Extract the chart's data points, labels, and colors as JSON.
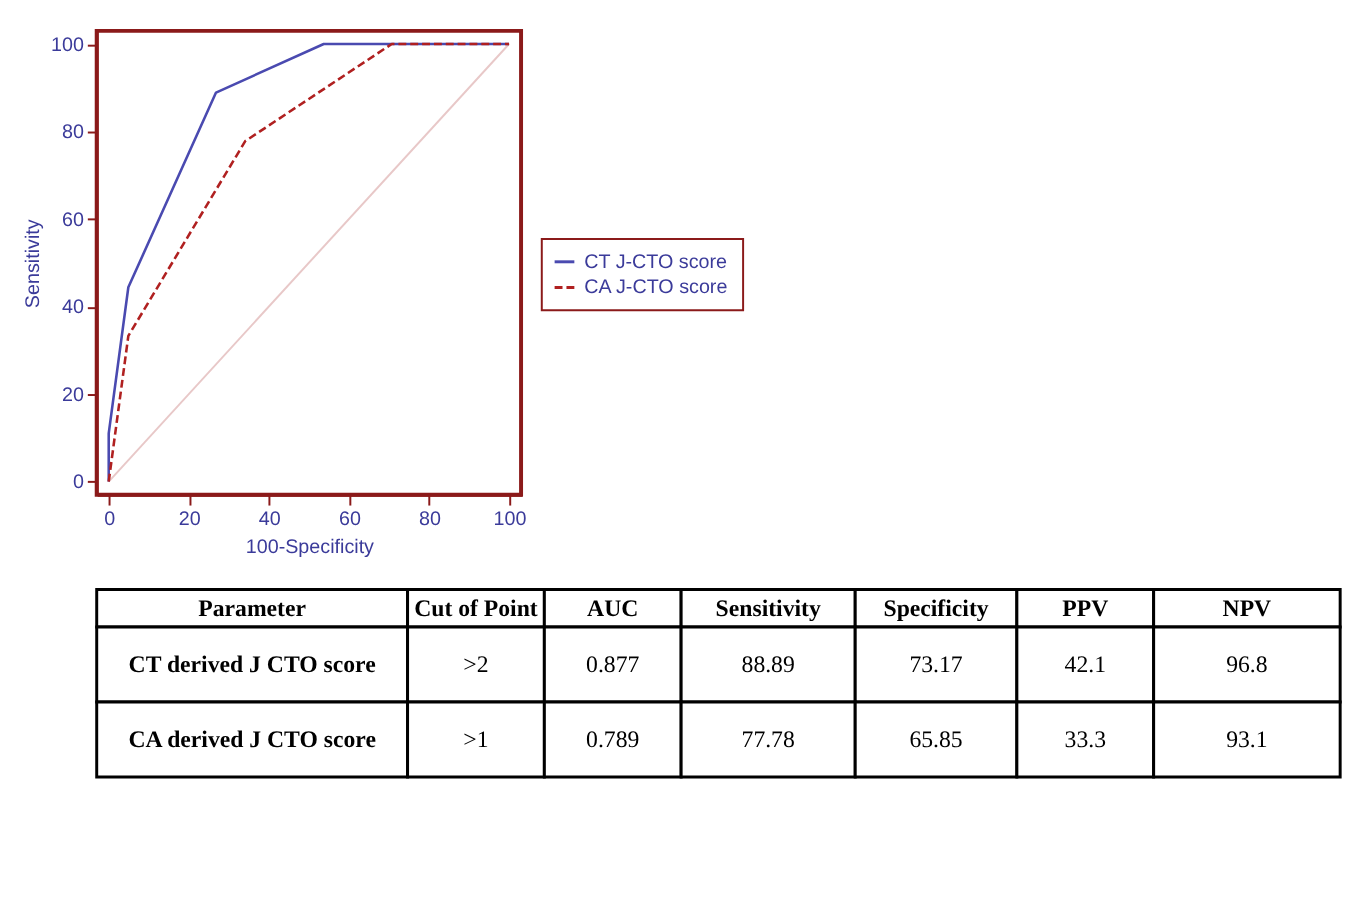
{
  "chart_data": {
    "type": "line",
    "xlabel": "100-Specificity",
    "ylabel": "Sensitivity",
    "xlim": [
      -3,
      103
    ],
    "ylim": [
      -3,
      103
    ],
    "xticks": [
      0,
      20,
      40,
      60,
      80,
      100
    ],
    "yticks": [
      0,
      20,
      40,
      60,
      80,
      100
    ],
    "grid": false,
    "legend": "right",
    "series": [
      {
        "name": "CT J-CTO score",
        "color": "#4a4ab0",
        "line_style": "solid",
        "x": [
          0,
          0,
          4.9,
          26.8,
          53.7,
          100
        ],
        "values": [
          0,
          11,
          44.4,
          88.9,
          100,
          100
        ]
      },
      {
        "name": "CA J-CTO score",
        "color": "#b02020",
        "line_style": "dashed",
        "x": [
          0,
          4.9,
          34.1,
          70.7,
          100
        ],
        "values": [
          0,
          33.3,
          77.8,
          100,
          100
        ]
      },
      {
        "color": "#e8c8c8",
        "line_style": "solid",
        "x": [
          0,
          100
        ],
        "values": [
          0,
          100
        ]
      }
    ],
    "annotations": [
      "Parameter",
      "Cut of Point",
      "AUC",
      "Sensitivity",
      "Specificity",
      "PPV",
      "NPV",
      "CT derived J CTO score",
      ">2",
      "0.877",
      "88.89",
      "73.17",
      "42.1",
      "96.8",
      "CA derived J CTO score",
      ">1",
      "0.789",
      "77.78",
      "65.85",
      "33.3",
      "93.1"
    ]
  }
}
